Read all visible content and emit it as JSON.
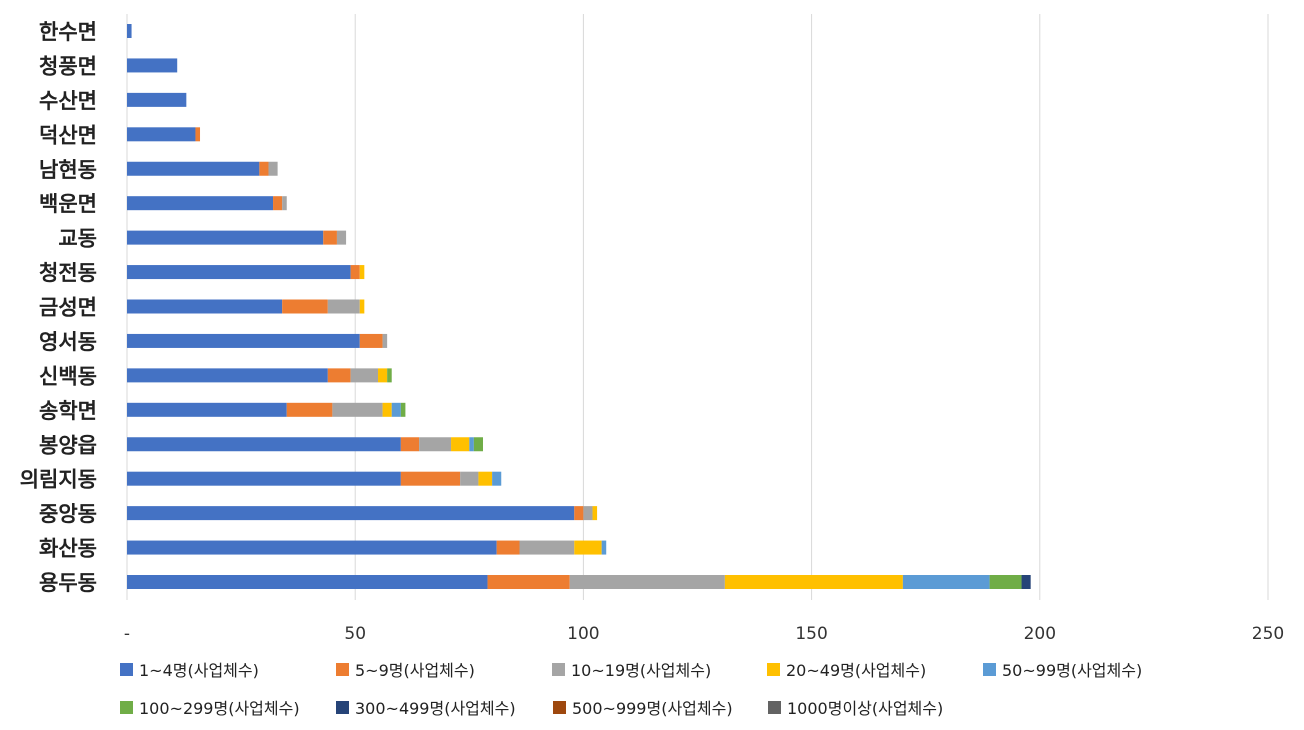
{
  "chart_data": {
    "type": "bar",
    "orientation": "horizontal",
    "stacked": true,
    "title": "",
    "xlabel": "",
    "ylabel": "",
    "xlim": [
      0,
      250
    ],
    "x_ticks": [
      0,
      50,
      100,
      150,
      200,
      250
    ],
    "x_tick_labels": [
      "-",
      "50",
      "100",
      "150",
      "200",
      "250"
    ],
    "grid": "vertical",
    "legend_position": "bottom",
    "categories": [
      "한수면",
      "청풍면",
      "수산면",
      "덕산면",
      "남현동",
      "백운면",
      "교동",
      "청전동",
      "금성면",
      "영서동",
      "신백동",
      "송학면",
      "봉양읍",
      "의림지동",
      "중앙동",
      "화산동",
      "용두동"
    ],
    "series": [
      {
        "name": "1~4명(사업체수)",
        "color": "#4472C4",
        "values": [
          1,
          11,
          13,
          15,
          29,
          32,
          43,
          49,
          34,
          51,
          44,
          35,
          60,
          60,
          98,
          81,
          79
        ]
      },
      {
        "name": "5~9명(사업체수)",
        "color": "#ED7D31",
        "values": [
          0,
          0,
          0,
          1,
          2,
          2,
          3,
          2,
          10,
          5,
          5,
          10,
          4,
          13,
          2,
          5,
          18
        ]
      },
      {
        "name": "10~19명(사업체수)",
        "color": "#A5A5A5",
        "values": [
          0,
          0,
          0,
          0,
          2,
          1,
          2,
          0,
          7,
          1,
          6,
          11,
          7,
          4,
          2,
          12,
          34
        ]
      },
      {
        "name": "20~49명(사업체수)",
        "color": "#FFC000",
        "values": [
          0,
          0,
          0,
          0,
          0,
          0,
          0,
          1,
          1,
          0,
          2,
          2,
          4,
          3,
          1,
          6,
          39
        ]
      },
      {
        "name": "50~99명(사업체수)",
        "color": "#5B9BD5",
        "values": [
          0,
          0,
          0,
          0,
          0,
          0,
          0,
          0,
          0,
          0,
          0,
          2,
          1,
          2,
          0,
          1,
          19
        ]
      },
      {
        "name": "100~299명(사업체수)",
        "color": "#70AD47",
        "values": [
          0,
          0,
          0,
          0,
          0,
          0,
          0,
          0,
          0,
          0,
          1,
          1,
          2,
          0,
          0,
          0,
          7
        ]
      },
      {
        "name": "300~499명(사업체수)",
        "color": "#264478",
        "values": [
          0,
          0,
          0,
          0,
          0,
          0,
          0,
          0,
          0,
          0,
          0,
          0,
          0,
          0,
          0,
          0,
          2
        ]
      },
      {
        "name": "500~999명(사업체수)",
        "color": "#9E480E",
        "values": [
          0,
          0,
          0,
          0,
          0,
          0,
          0,
          0,
          0,
          0,
          0,
          0,
          0,
          0,
          0,
          0,
          0
        ]
      },
      {
        "name": "1000명이상(사업체수)",
        "color": "#636363",
        "values": [
          0,
          0,
          0,
          0,
          0,
          0,
          0,
          0,
          0,
          0,
          0,
          0,
          0,
          0,
          0,
          0,
          0
        ]
      }
    ]
  }
}
